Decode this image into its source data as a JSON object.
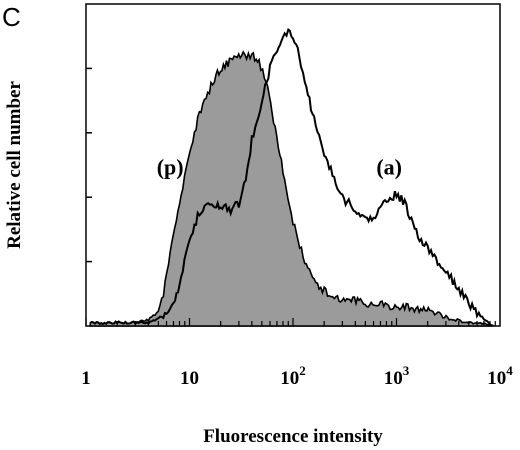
{
  "panel_label": "C",
  "chart_data": {
    "type": "area",
    "title": "",
    "xlabel": "Fluorescence intensity",
    "ylabel": "Relative cell number",
    "xscale": "log",
    "xlim": [
      1,
      10000
    ],
    "ylim": [
      0,
      100
    ],
    "grid": false,
    "xticks": [
      {
        "base": "1",
        "exp": ""
      },
      {
        "base": "10",
        "exp": ""
      },
      {
        "base": "10",
        "exp": "2"
      },
      {
        "base": "10",
        "exp": "3"
      },
      {
        "base": "10",
        "exp": "4"
      }
    ],
    "annotations": [
      {
        "text": "(p)",
        "x": 6.5,
        "y": 47
      },
      {
        "text": "(a)",
        "x": 850,
        "y": 47
      }
    ],
    "series": [
      {
        "style": "filled-grey",
        "x": [
          1.1,
          2,
          3,
          4,
          5,
          5.6,
          6.5,
          8,
          10,
          12,
          15,
          18,
          22,
          27,
          33,
          40,
          47,
          55,
          65,
          80,
          100,
          130,
          160,
          200,
          260,
          330,
          420,
          550,
          700,
          900,
          1200,
          1600,
          2100,
          2800,
          3600,
          4800,
          6500,
          8500
        ],
        "y": [
          1,
          1,
          1,
          2,
          4,
          10,
          22,
          38,
          53,
          64,
          72,
          78,
          81,
          83,
          84,
          84,
          82,
          76,
          64,
          48,
          32,
          20,
          14,
          11,
          9,
          8,
          8,
          7,
          7,
          6,
          6,
          5,
          5,
          3,
          2,
          1,
          1,
          0
        ]
      },
      {
        "style": "line",
        "x": [
          1.1,
          2,
          3,
          4,
          5,
          6,
          7,
          8,
          10,
          12,
          14,
          17,
          20,
          25,
          30,
          35,
          40,
          50,
          60,
          70,
          80,
          90,
          100,
          115,
          130,
          160,
          200,
          250,
          300,
          400,
          500,
          600,
          700,
          800,
          900,
          1000,
          1200,
          1500,
          2000,
          2500,
          3000,
          3500,
          4000,
          5000,
          6000,
          7000,
          8500
        ],
        "y": [
          1,
          1,
          1,
          1,
          2,
          4,
          7,
          13,
          26,
          34,
          37,
          38,
          37,
          36,
          38,
          45,
          58,
          70,
          80,
          86,
          90,
          92,
          90,
          84,
          76,
          64,
          54,
          46,
          40,
          36,
          33,
          34,
          37,
          38,
          40,
          41,
          38,
          30,
          24,
          20,
          17,
          14,
          11,
          7,
          4,
          2,
          0
        ]
      }
    ]
  }
}
